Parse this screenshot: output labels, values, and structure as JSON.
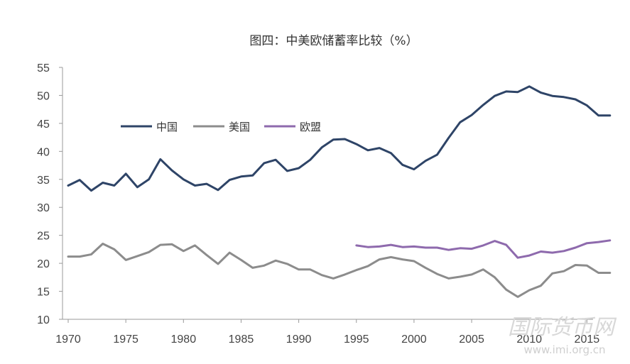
{
  "chart_data": {
    "type": "line",
    "title": "图四：中美欧储蓄率比较（%）",
    "xlabel": "",
    "ylabel": "",
    "xlim": [
      1970,
      2017
    ],
    "ylim": [
      10,
      55
    ],
    "x_ticks": [
      1970,
      1975,
      1980,
      1985,
      1990,
      1995,
      2000,
      2005,
      2010,
      2015
    ],
    "y_ticks": [
      10,
      15,
      20,
      25,
      30,
      35,
      40,
      45,
      50,
      55
    ],
    "legend_position": "upper-left inside plot",
    "grid": false,
    "series": [
      {
        "name": "中国",
        "color": "#2e4467",
        "x": [
          1970,
          1971,
          1972,
          1973,
          1974,
          1975,
          1976,
          1977,
          1978,
          1979,
          1980,
          1981,
          1982,
          1983,
          1984,
          1985,
          1986,
          1987,
          1988,
          1989,
          1990,
          1991,
          1992,
          1993,
          1994,
          1995,
          1996,
          1997,
          1998,
          1999,
          2000,
          2001,
          2002,
          2003,
          2004,
          2005,
          2006,
          2007,
          2008,
          2009,
          2010,
          2011,
          2012,
          2013,
          2014,
          2015,
          2016,
          2017
        ],
        "values": [
          33.9,
          34.9,
          33.0,
          34.4,
          33.9,
          36.0,
          33.6,
          35.0,
          38.6,
          36.6,
          35.0,
          33.9,
          34.2,
          33.1,
          34.9,
          35.5,
          35.7,
          37.9,
          38.5,
          36.5,
          37.0,
          38.5,
          40.7,
          42.1,
          42.2,
          41.3,
          40.2,
          40.6,
          39.7,
          37.6,
          36.8,
          38.3,
          39.4,
          42.4,
          45.2,
          46.5,
          48.3,
          49.9,
          50.7,
          50.6,
          51.6,
          50.5,
          49.9,
          49.7,
          49.3,
          48.2,
          46.4,
          46.4
        ]
      },
      {
        "name": "美国",
        "color": "#8c8c8c",
        "x": [
          1970,
          1971,
          1972,
          1973,
          1974,
          1975,
          1976,
          1977,
          1978,
          1979,
          1980,
          1981,
          1982,
          1983,
          1984,
          1985,
          1986,
          1987,
          1988,
          1989,
          1990,
          1991,
          1992,
          1993,
          1994,
          1995,
          1996,
          1997,
          1998,
          1999,
          2000,
          2001,
          2002,
          2003,
          2004,
          2005,
          2006,
          2007,
          2008,
          2009,
          2010,
          2011,
          2012,
          2013,
          2014,
          2015,
          2016,
          2017
        ],
        "values": [
          21.2,
          21.2,
          21.6,
          23.5,
          22.5,
          20.6,
          21.3,
          22.0,
          23.3,
          23.4,
          22.2,
          23.2,
          21.5,
          19.9,
          21.9,
          20.6,
          19.2,
          19.6,
          20.5,
          19.9,
          18.9,
          18.9,
          17.9,
          17.3,
          18.0,
          18.8,
          19.5,
          20.7,
          21.1,
          20.7,
          20.4,
          19.2,
          18.1,
          17.3,
          17.6,
          18.0,
          18.9,
          17.5,
          15.3,
          14.0,
          15.2,
          16.0,
          18.2,
          18.6,
          19.7,
          19.6,
          18.3,
          18.3
        ]
      },
      {
        "name": "欧盟",
        "color": "#8e6aad",
        "x": [
          1995,
          1996,
          1997,
          1998,
          1999,
          2000,
          2001,
          2002,
          2003,
          2004,
          2005,
          2006,
          2007,
          2008,
          2009,
          2010,
          2011,
          2012,
          2013,
          2014,
          2015,
          2016,
          2017
        ],
        "values": [
          23.2,
          22.9,
          23.0,
          23.3,
          22.9,
          23.0,
          22.8,
          22.8,
          22.4,
          22.7,
          22.6,
          23.2,
          24.0,
          23.3,
          21.0,
          21.4,
          22.1,
          21.9,
          22.2,
          22.8,
          23.6,
          23.8,
          24.1
        ]
      }
    ]
  },
  "watermark": {
    "main": "国际货币网",
    "url": "www.imi.org.cn"
  }
}
